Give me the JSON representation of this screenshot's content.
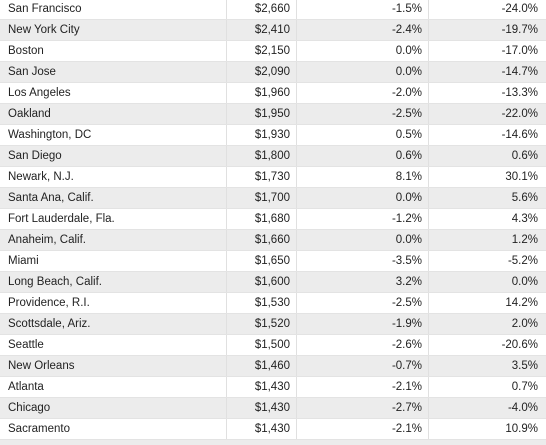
{
  "table": {
    "rows": [
      [
        "San Francisco",
        "$2,660",
        "-1.5%",
        "-24.0%"
      ],
      [
        "New York City",
        "$2,410",
        "-2.4%",
        "-19.7%"
      ],
      [
        "Boston",
        "$2,150",
        "0.0%",
        "-17.0%"
      ],
      [
        "San Jose",
        "$2,090",
        "0.0%",
        "-14.7%"
      ],
      [
        "Los Angeles",
        "$1,960",
        "-2.0%",
        "-13.3%"
      ],
      [
        "Oakland",
        "$1,950",
        "-2.5%",
        "-22.0%"
      ],
      [
        "Washington, DC",
        "$1,930",
        "0.5%",
        "-14.6%"
      ],
      [
        "San Diego",
        "$1,800",
        "0.6%",
        "0.6%"
      ],
      [
        "Newark, N.J.",
        "$1,730",
        "8.1%",
        "30.1%"
      ],
      [
        "Santa Ana, Calif.",
        "$1,700",
        "0.0%",
        "5.6%"
      ],
      [
        "Fort Lauderdale, Fla.",
        "$1,680",
        "-1.2%",
        "4.3%"
      ],
      [
        "Anaheim, Calif.",
        "$1,660",
        "0.0%",
        "1.2%"
      ],
      [
        "Miami",
        "$1,650",
        "-3.5%",
        "-5.2%"
      ],
      [
        "Long Beach, Calif.",
        "$1,600",
        "3.2%",
        "0.0%"
      ],
      [
        "Providence, R.I.",
        "$1,530",
        "-2.5%",
        "14.2%"
      ],
      [
        "Scottsdale, Ariz.",
        "$1,520",
        "-1.9%",
        "2.0%"
      ],
      [
        "Seattle",
        "$1,500",
        "-2.6%",
        "-20.6%"
      ],
      [
        "New Orleans",
        "$1,460",
        "-0.7%",
        "3.5%"
      ],
      [
        "Atlanta",
        "$1,430",
        "-2.1%",
        "0.7%"
      ],
      [
        "Chicago",
        "$1,430",
        "-2.7%",
        "-4.0%"
      ],
      [
        "Sacramento",
        "$1,430",
        "-2.1%",
        "10.9%"
      ]
    ]
  }
}
